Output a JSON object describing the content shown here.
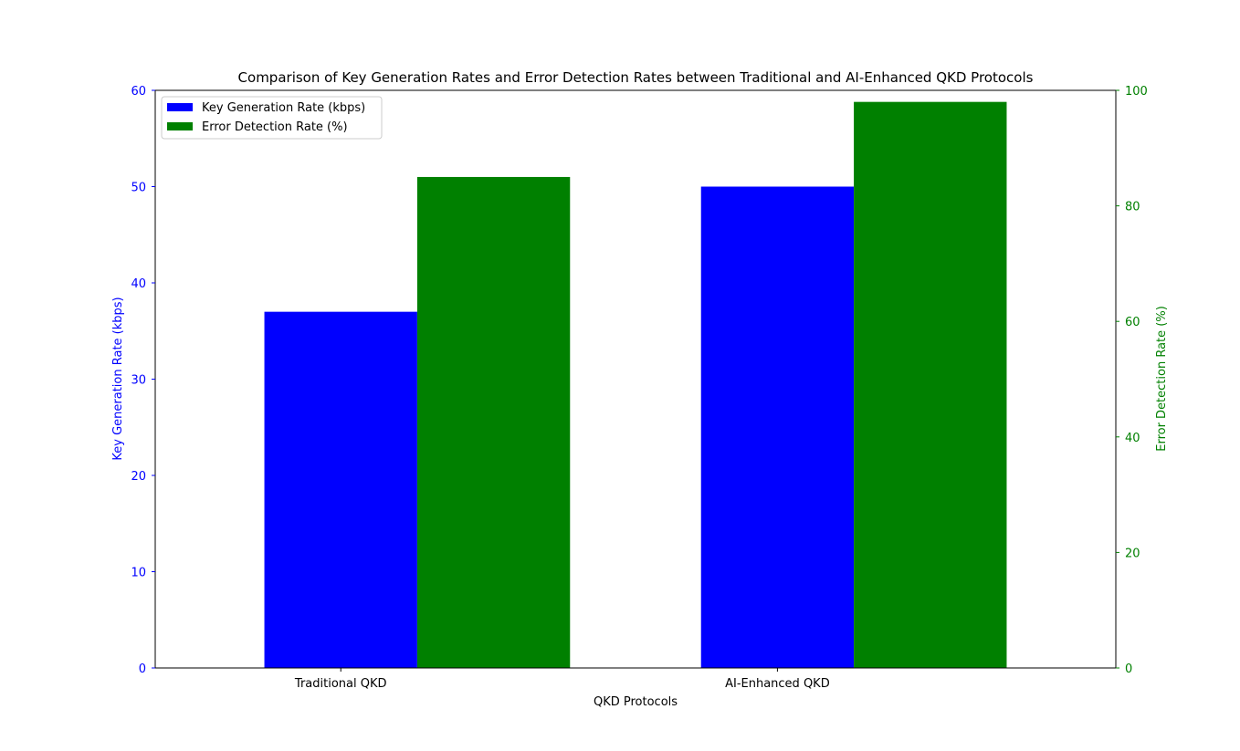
{
  "chart_data": {
    "type": "bar",
    "title": "Comparison of Key Generation Rates and Error Detection Rates between Traditional and AI-Enhanced QKD Protocols",
    "xlabel": "QKD Protocols",
    "categories": [
      "Traditional QKD",
      "AI-Enhanced QKD"
    ],
    "y_left": {
      "label": "Key Generation Rate (kbps)",
      "lim": [
        0,
        60
      ],
      "ticks": [
        0,
        10,
        20,
        30,
        40,
        50,
        60
      ],
      "color": "#0000ff"
    },
    "y_right": {
      "label": "Error Detection Rate (%)",
      "lim": [
        0,
        100
      ],
      "ticks": [
        0,
        20,
        40,
        60,
        80,
        100
      ],
      "color": "#008000"
    },
    "series": [
      {
        "name": "Key Generation Rate (kbps)",
        "axis": "left",
        "color": "#0000ff",
        "values": [
          37,
          50
        ]
      },
      {
        "name": "Error Detection Rate (%)",
        "axis": "right",
        "color": "#008000",
        "values": [
          85,
          98
        ]
      }
    ],
    "legend_position": "upper left",
    "grid": false
  }
}
